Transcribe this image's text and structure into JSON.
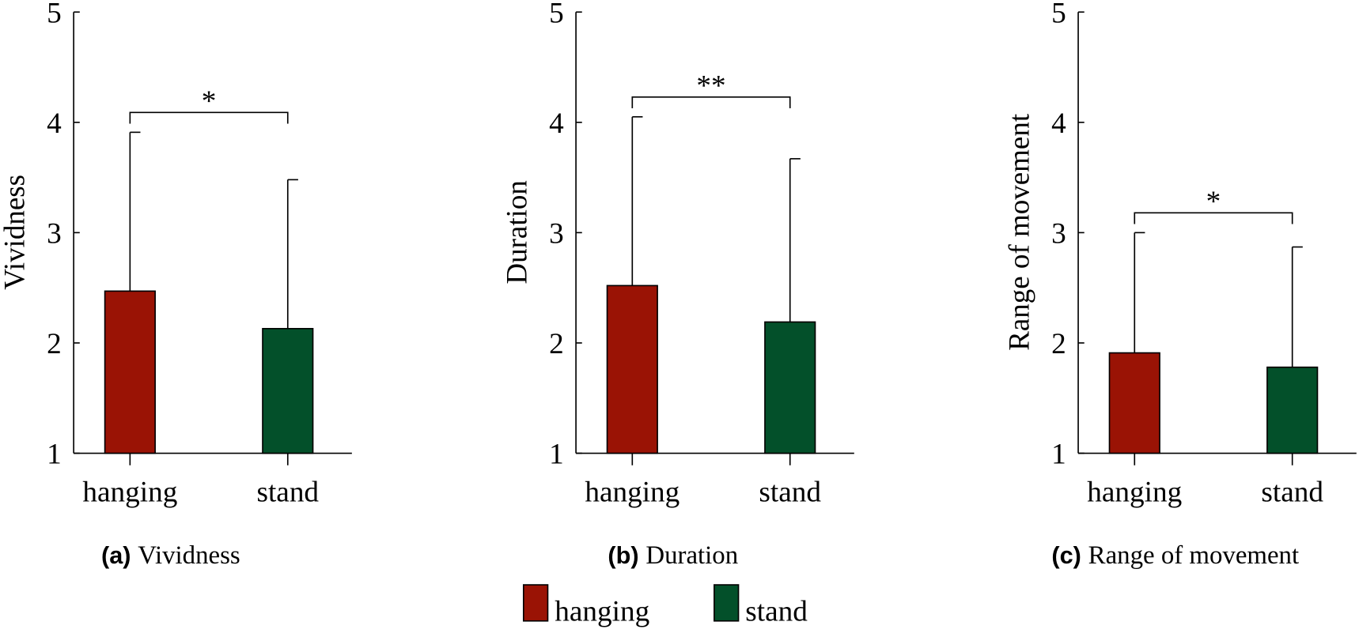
{
  "chart_data": [
    {
      "type": "bar",
      "ylabel": "Vividness",
      "caption_label": "(a)",
      "caption": "Vividness",
      "categories": [
        "hanging",
        "stand"
      ],
      "values": [
        2.47,
        2.13
      ],
      "errors": [
        1.44,
        1.35
      ],
      "colors": [
        "#9a1305",
        "#03502a"
      ],
      "significance": "*",
      "ylim": [
        1,
        5
      ],
      "yticks": [
        1,
        2,
        3,
        4,
        5
      ]
    },
    {
      "type": "bar",
      "ylabel": "Duration",
      "caption_label": "(b)",
      "caption": "Duration",
      "categories": [
        "hanging",
        "stand"
      ],
      "values": [
        2.52,
        2.19
      ],
      "errors": [
        1.53,
        1.48
      ],
      "colors": [
        "#9a1305",
        "#03502a"
      ],
      "significance": "**",
      "ylim": [
        1,
        5
      ],
      "yticks": [
        1,
        2,
        3,
        4,
        5
      ]
    },
    {
      "type": "bar",
      "ylabel": "Range of movement",
      "caption_label": "(c)",
      "caption": "Range of movement",
      "categories": [
        "hanging",
        "stand"
      ],
      "values": [
        1.91,
        1.78
      ],
      "errors": [
        1.09,
        1.09
      ],
      "colors": [
        "#9a1305",
        "#03502a"
      ],
      "significance": "*",
      "ylim": [
        1,
        5
      ],
      "yticks": [
        1,
        2,
        3,
        4,
        5
      ]
    }
  ]
}
